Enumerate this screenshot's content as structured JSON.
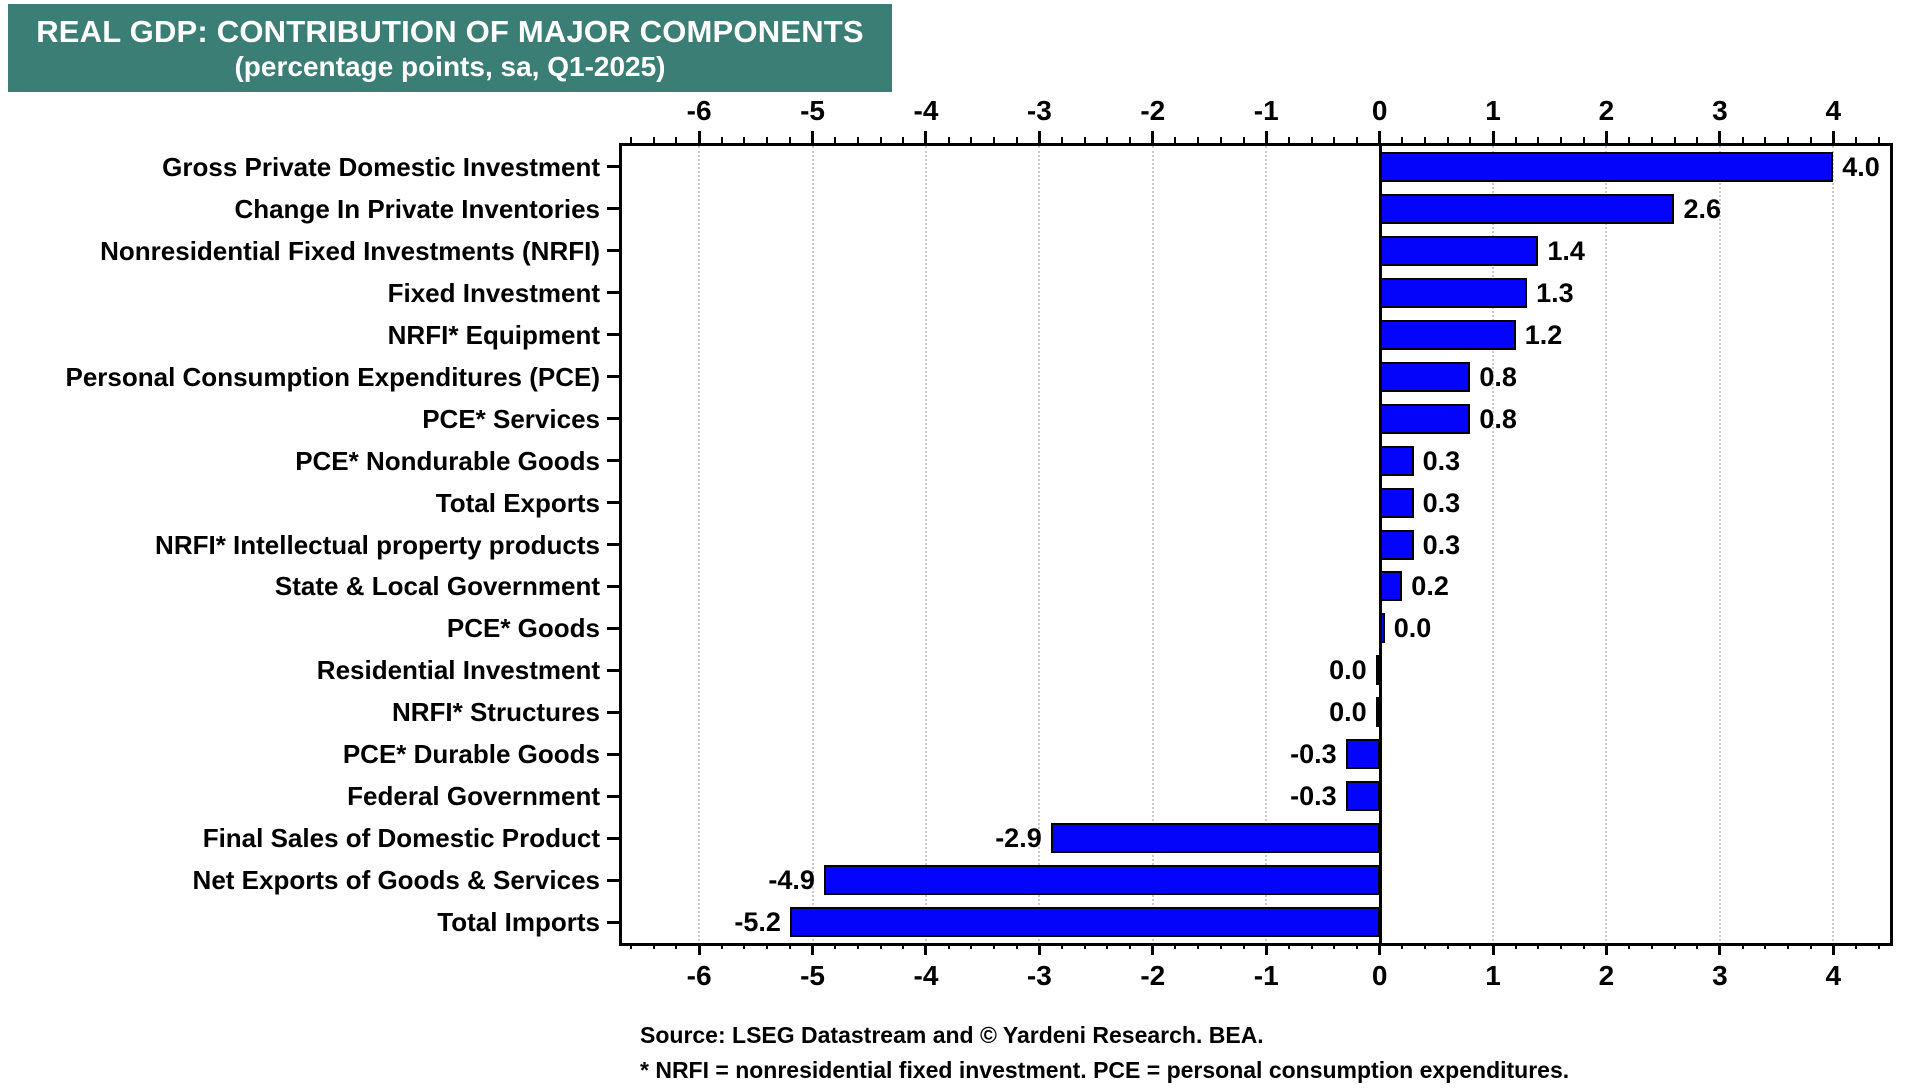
{
  "title": {
    "line1": "REAL GDP: CONTRIBUTION OF MAJOR COMPONENTS",
    "line2": "(percentage points, sa, Q1-2025)"
  },
  "footer": {
    "source": "Source: LSEG Datastream and © Yardeni Research. BEA.",
    "note": "* NRFI = nonresidential fixed investment. PCE = personal consumption expenditures."
  },
  "colors": {
    "title_bg": "#3A7E76",
    "title_text": "#FFFFFF",
    "bar_fill": "#0404FA",
    "bar_border": "#000000",
    "grid": "#C9C9C9",
    "axis": "#000000",
    "text": "#000000"
  },
  "chart_data": {
    "type": "bar",
    "orientation": "horizontal",
    "title": "REAL GDP: CONTRIBUTION OF MAJOR COMPONENTS (percentage points, sa, Q1-2025)",
    "categories": [
      "Gross Private Domestic Investment",
      "Change In Private Inventories",
      "Nonresidential Fixed Investments (NRFI)",
      "Fixed Investment",
      "NRFI* Equipment",
      "Personal Consumption Expenditures (PCE)",
      "PCE* Services",
      "PCE* Nondurable Goods",
      "Total Exports",
      "NRFI* Intellectual property products",
      "State & Local Government",
      "PCE* Goods",
      "Residential Investment",
      "NRFI* Structures",
      "PCE* Durable Goods",
      "Federal Government",
      "Final Sales of Domestic Product",
      "Net Exports of Goods & Services",
      "Total Imports"
    ],
    "values": [
      4.0,
      2.6,
      1.4,
      1.3,
      1.2,
      0.8,
      0.8,
      0.3,
      0.3,
      0.3,
      0.2,
      0.0,
      0.0,
      0.0,
      -0.3,
      -0.3,
      -2.9,
      -4.9,
      -5.2
    ],
    "value_labels": [
      "4.0",
      "2.6",
      "1.4",
      "1.3",
      "1.2",
      "0.8",
      "0.8",
      "0.3",
      "0.3",
      "0.3",
      "0.2",
      "0.0",
      "0.0",
      "0.0",
      "-0.3",
      "-0.3",
      "-2.9",
      "-4.9",
      "-5.2"
    ],
    "bar_draw_values": [
      4.0,
      2.6,
      1.4,
      1.3,
      1.2,
      0.8,
      0.8,
      0.3,
      0.3,
      0.3,
      0.2,
      0.045,
      -0.035,
      -0.035,
      -0.3,
      -0.3,
      -2.9,
      -4.9,
      -5.2
    ],
    "xlim": [
      -6.68,
      4.5
    ],
    "x_tick_values": [
      -6,
      -5,
      -4,
      -3,
      -2,
      -1,
      0,
      1,
      2,
      3,
      4
    ],
    "x_tick_labels": [
      "-6",
      "-5",
      "-4",
      "-3",
      "-2",
      "-1",
      "0",
      "1",
      "2",
      "3",
      "4"
    ],
    "minor_tick_step": 0.2,
    "grid": "dotted vertical gridlines at integer ticks, solid black line at zero",
    "legend": "none"
  }
}
